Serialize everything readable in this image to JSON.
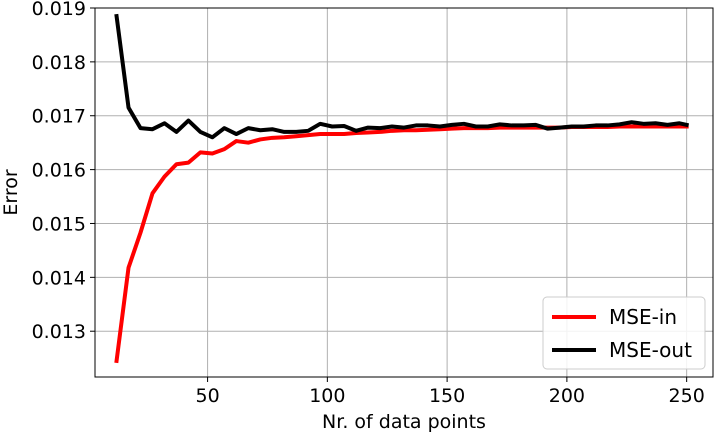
{
  "chart_data": {
    "type": "line",
    "title": "",
    "xlabel": "Nr. of data points",
    "ylabel": "Error",
    "xlim": [
      3,
      261
    ],
    "ylim": [
      0.01215,
      0.019
    ],
    "xticks": [
      50,
      100,
      150,
      200,
      250
    ],
    "xtick_labels": [
      "50",
      "100",
      "150",
      "200",
      "250"
    ],
    "yticks": [
      0.013,
      0.014,
      0.015,
      0.016,
      0.017,
      0.018,
      0.019
    ],
    "ytick_labels": [
      "0.013",
      "0.014",
      "0.015",
      "0.016",
      "0.017",
      "0.018",
      "0.019"
    ],
    "grid": true,
    "legend_position": "lower-right",
    "x": [
      12,
      17,
      22,
      27,
      32,
      37,
      42,
      47,
      52,
      57,
      62,
      67,
      72,
      77,
      82,
      87,
      92,
      97,
      102,
      107,
      112,
      117,
      122,
      127,
      132,
      137,
      142,
      147,
      152,
      157,
      162,
      167,
      172,
      177,
      182,
      187,
      192,
      197,
      202,
      207,
      212,
      217,
      222,
      227,
      232,
      237,
      242,
      247,
      250
    ],
    "series": [
      {
        "name": "MSE-in",
        "color": "#ff0000",
        "values": [
          0.01245,
          0.01418,
          0.01483,
          0.01556,
          0.01587,
          0.0161,
          0.01613,
          0.01632,
          0.0163,
          0.01638,
          0.01653,
          0.0165,
          0.01656,
          0.01659,
          0.0166,
          0.01662,
          0.01664,
          0.01666,
          0.01666,
          0.01666,
          0.01668,
          0.01669,
          0.0167,
          0.01672,
          0.01673,
          0.01673,
          0.01674,
          0.01675,
          0.01676,
          0.01677,
          0.01677,
          0.01677,
          0.01678,
          0.01678,
          0.01678,
          0.01678,
          0.01678,
          0.01678,
          0.01679,
          0.01679,
          0.01679,
          0.01679,
          0.0168,
          0.0168,
          0.0168,
          0.0168,
          0.0168,
          0.0168,
          0.0168
        ]
      },
      {
        "name": "MSE-out",
        "color": "#000000",
        "values": [
          0.01885,
          0.01715,
          0.01677,
          0.01675,
          0.01686,
          0.0167,
          0.01691,
          0.0167,
          0.0166,
          0.01677,
          0.01666,
          0.01677,
          0.01673,
          0.01675,
          0.0167,
          0.0167,
          0.01672,
          0.01685,
          0.0168,
          0.01681,
          0.01672,
          0.01678,
          0.01677,
          0.0168,
          0.01678,
          0.01682,
          0.01682,
          0.0168,
          0.01683,
          0.01685,
          0.0168,
          0.0168,
          0.01684,
          0.01682,
          0.01682,
          0.01683,
          0.01676,
          0.01678,
          0.0168,
          0.0168,
          0.01682,
          0.01682,
          0.01684,
          0.01688,
          0.01685,
          0.01686,
          0.01683,
          0.01686,
          0.01683
        ]
      }
    ]
  }
}
